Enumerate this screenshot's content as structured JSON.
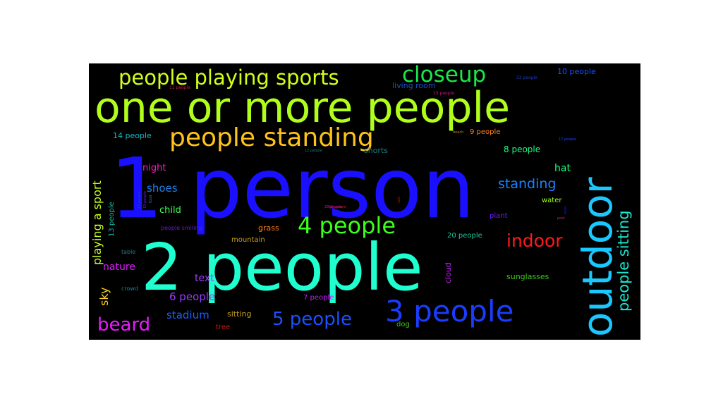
{
  "words": [
    {
      "text": "1 person",
      "color": "#1a10ff"
    },
    {
      "text": "2 people",
      "color": "#1fffd0"
    },
    {
      "text": "one or more people",
      "color": "#b0ff1a"
    },
    {
      "text": "outdoor",
      "color": "#1ac8ff"
    },
    {
      "text": "people standing",
      "color": "#ffc21a"
    },
    {
      "text": "3 people",
      "color": "#1a3cff"
    },
    {
      "text": "people playing sports",
      "color": "#d2ff1a"
    },
    {
      "text": "closeup",
      "color": "#1ae84a"
    },
    {
      "text": "4 people",
      "color": "#3cff1a"
    },
    {
      "text": "5 people",
      "color": "#1a50ff"
    },
    {
      "text": "beard",
      "color": "#e81aff"
    },
    {
      "text": "indoor",
      "color": "#ff1a1a"
    },
    {
      "text": "people sitting",
      "color": "#1ae8d0"
    },
    {
      "text": "standing",
      "color": "#1a80ff"
    },
    {
      "text": "playing a sport",
      "color": "#c8ff1a"
    },
    {
      "text": "6 people",
      "color": "#9a3cff"
    },
    {
      "text": "stadium",
      "color": "#1a60ff"
    },
    {
      "text": "shoes",
      "color": "#1a80e8"
    },
    {
      "text": "nature",
      "color": "#e01aff"
    },
    {
      "text": "text",
      "color": "#a03cff"
    },
    {
      "text": "sky",
      "color": "#ffd21a"
    },
    {
      "text": "night",
      "color": "#ff1ac0"
    },
    {
      "text": "child",
      "color": "#3cff50"
    },
    {
      "text": "hat",
      "color": "#1aff80"
    },
    {
      "text": "8 people",
      "color": "#1aff80"
    },
    {
      "text": "14 people",
      "color": "#1ab8c8"
    },
    {
      "text": "9 people",
      "color": "#ff801a"
    },
    {
      "text": "10 people",
      "color": "#1a50ff"
    },
    {
      "text": "living room",
      "color": "#1a50c8"
    },
    {
      "text": "shorts",
      "color": "#1a8080"
    },
    {
      "text": "water",
      "color": "#a0ff1a"
    },
    {
      "text": "plant",
      "color": "#6a1aff"
    },
    {
      "text": "grass",
      "color": "#ff801a"
    },
    {
      "text": "mountain",
      "color": "#c8a01a"
    },
    {
      "text": "20 people",
      "color": "#1ac8a0"
    },
    {
      "text": "sunglasses",
      "color": "#3cc81a"
    },
    {
      "text": "cloud",
      "color": "#c81aff"
    },
    {
      "text": "7 people",
      "color": "#c81aff"
    },
    {
      "text": "sitting",
      "color": "#c8a01a"
    },
    {
      "text": "tree",
      "color": "#c81a1a"
    },
    {
      "text": "dog",
      "color": "#3cc81a"
    },
    {
      "text": "13 people",
      "color": "#1ab8a0"
    },
    {
      "text": "people smiling",
      "color": "#6a1ac8"
    },
    {
      "text": "table",
      "color": "#1a8080"
    },
    {
      "text": "crowd",
      "color": "#1a80a0"
    },
    {
      "text": "11 people",
      "color": "#c81a50"
    },
    {
      "text": "15 people",
      "color": "#c81a80"
    },
    {
      "text": "22 people",
      "color": "#1a3cc8"
    },
    {
      "text": "beach",
      "color": "#c8801a"
    },
    {
      "text": "12 people",
      "color": "#1a8080"
    },
    {
      "text": "16 people",
      "color": "#c81a1a"
    },
    {
      "text": "29 people",
      "color": "#c81aa0"
    },
    {
      "text": "pool",
      "color": "#c81a80"
    },
    {
      "text": "17 people",
      "color": "#1a3cff"
    },
    {
      "text": "18 people",
      "color": "#1a3cc8"
    },
    {
      "text": "19 people",
      "color": "#6a1aff"
    },
    {
      "text": "suit",
      "color": "#a01a1a"
    },
    {
      "text": "food",
      "color": "#1a80a0"
    },
    {
      "text": "bowl",
      "color": "#1a1ac8"
    }
  ]
}
